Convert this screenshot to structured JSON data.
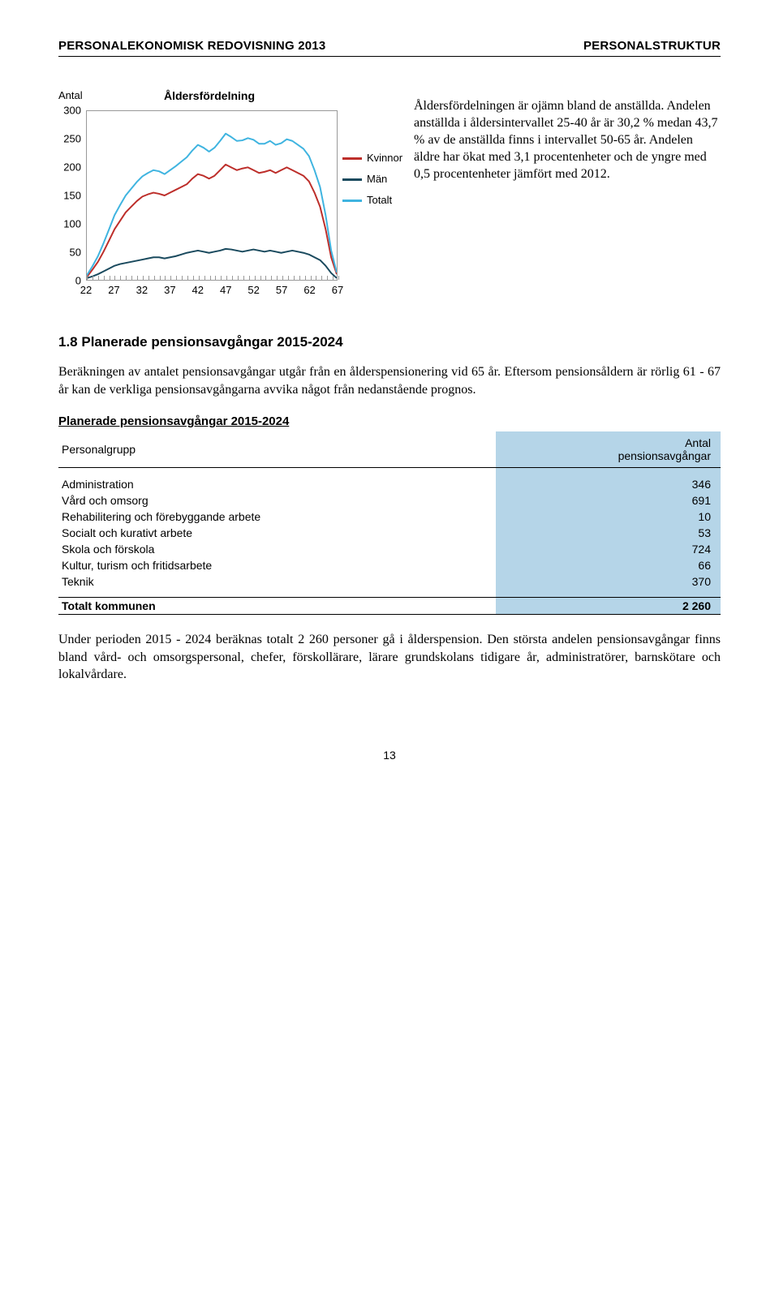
{
  "header": {
    "left": "PERSONALEKONOMISK REDOVISNING 2013",
    "right": "PERSONALSTRUKTUR"
  },
  "chart": {
    "type": "line",
    "y_axis_label": "Antal",
    "title": "Åldersfördelning",
    "xlim": [
      22,
      67
    ],
    "ylim": [
      0,
      300
    ],
    "ytick_step": 50,
    "xtick_step": 5,
    "xticks": [
      22,
      27,
      32,
      37,
      42,
      47,
      52,
      57,
      62,
      67
    ],
    "yticks": [
      0,
      50,
      100,
      150,
      200,
      250,
      300
    ],
    "border_color": "#999999",
    "background_color": "#ffffff",
    "line_width": 2,
    "series": [
      {
        "name": "Kvinnor",
        "color": "#bd2e2a",
        "data": [
          [
            22,
            5
          ],
          [
            23,
            18
          ],
          [
            24,
            32
          ],
          [
            25,
            50
          ],
          [
            26,
            70
          ],
          [
            27,
            90
          ],
          [
            28,
            105
          ],
          [
            29,
            120
          ],
          [
            30,
            130
          ],
          [
            31,
            140
          ],
          [
            32,
            148
          ],
          [
            33,
            152
          ],
          [
            34,
            155
          ],
          [
            35,
            153
          ],
          [
            36,
            150
          ],
          [
            37,
            155
          ],
          [
            38,
            160
          ],
          [
            39,
            165
          ],
          [
            40,
            170
          ],
          [
            41,
            180
          ],
          [
            42,
            188
          ],
          [
            43,
            185
          ],
          [
            44,
            180
          ],
          [
            45,
            185
          ],
          [
            46,
            195
          ],
          [
            47,
            205
          ],
          [
            48,
            200
          ],
          [
            49,
            195
          ],
          [
            50,
            198
          ],
          [
            51,
            200
          ],
          [
            52,
            195
          ],
          [
            53,
            190
          ],
          [
            54,
            192
          ],
          [
            55,
            195
          ],
          [
            56,
            190
          ],
          [
            57,
            195
          ],
          [
            58,
            200
          ],
          [
            59,
            195
          ],
          [
            60,
            190
          ],
          [
            61,
            185
          ],
          [
            62,
            175
          ],
          [
            63,
            155
          ],
          [
            64,
            130
          ],
          [
            65,
            90
          ],
          [
            66,
            40
          ],
          [
            67,
            10
          ]
        ]
      },
      {
        "name": "Män",
        "color": "#1a4a5e",
        "data": [
          [
            22,
            3
          ],
          [
            23,
            6
          ],
          [
            24,
            10
          ],
          [
            25,
            15
          ],
          [
            26,
            20
          ],
          [
            27,
            25
          ],
          [
            28,
            28
          ],
          [
            29,
            30
          ],
          [
            30,
            32
          ],
          [
            31,
            34
          ],
          [
            32,
            36
          ],
          [
            33,
            38
          ],
          [
            34,
            40
          ],
          [
            35,
            40
          ],
          [
            36,
            38
          ],
          [
            37,
            40
          ],
          [
            38,
            42
          ],
          [
            39,
            45
          ],
          [
            40,
            48
          ],
          [
            41,
            50
          ],
          [
            42,
            52
          ],
          [
            43,
            50
          ],
          [
            44,
            48
          ],
          [
            45,
            50
          ],
          [
            46,
            52
          ],
          [
            47,
            55
          ],
          [
            48,
            54
          ],
          [
            49,
            52
          ],
          [
            50,
            50
          ],
          [
            51,
            52
          ],
          [
            52,
            54
          ],
          [
            53,
            52
          ],
          [
            54,
            50
          ],
          [
            55,
            52
          ],
          [
            56,
            50
          ],
          [
            57,
            48
          ],
          [
            58,
            50
          ],
          [
            59,
            52
          ],
          [
            60,
            50
          ],
          [
            61,
            48
          ],
          [
            62,
            45
          ],
          [
            63,
            40
          ],
          [
            64,
            35
          ],
          [
            65,
            25
          ],
          [
            66,
            12
          ],
          [
            67,
            3
          ]
        ]
      },
      {
        "name": "Totalt",
        "color": "#3fb4e0",
        "data": [
          [
            22,
            8
          ],
          [
            23,
            24
          ],
          [
            24,
            42
          ],
          [
            25,
            65
          ],
          [
            26,
            90
          ],
          [
            27,
            115
          ],
          [
            28,
            133
          ],
          [
            29,
            150
          ],
          [
            30,
            162
          ],
          [
            31,
            174
          ],
          [
            32,
            184
          ],
          [
            33,
            190
          ],
          [
            34,
            195
          ],
          [
            35,
            193
          ],
          [
            36,
            188
          ],
          [
            37,
            195
          ],
          [
            38,
            202
          ],
          [
            39,
            210
          ],
          [
            40,
            218
          ],
          [
            41,
            230
          ],
          [
            42,
            240
          ],
          [
            43,
            235
          ],
          [
            44,
            228
          ],
          [
            45,
            235
          ],
          [
            46,
            247
          ],
          [
            47,
            260
          ],
          [
            48,
            254
          ],
          [
            49,
            247
          ],
          [
            50,
            248
          ],
          [
            51,
            252
          ],
          [
            52,
            249
          ],
          [
            53,
            242
          ],
          [
            54,
            242
          ],
          [
            55,
            247
          ],
          [
            56,
            240
          ],
          [
            57,
            243
          ],
          [
            58,
            250
          ],
          [
            59,
            247
          ],
          [
            60,
            240
          ],
          [
            61,
            233
          ],
          [
            62,
            220
          ],
          [
            63,
            195
          ],
          [
            64,
            165
          ],
          [
            65,
            115
          ],
          [
            66,
            52
          ],
          [
            67,
            13
          ]
        ]
      }
    ],
    "legend_labels": {
      "kvinnor": "Kvinnor",
      "man": "Män",
      "totalt": "Totalt"
    }
  },
  "side_paragraph": "Åldersfördelningen är ojämn bland de anställda. Andelen anställda i åldersintervallet 25-40 år är 30,2 % medan 43,7 % av de anställda finns i intervallet 50-65 år. Andelen äldre har ökat med 3,1 procentenheter och de yngre med 0,5 procentenheter jämfört med 2012.",
  "section_heading": "1.8 Planerade pensionsavgångar 2015-2024",
  "para1": "Beräkningen av antalet pensionsavgångar utgår från en ålderspensionering vid 65 år. Eftersom pensionsåldern är rörlig 61 - 67 år kan de verkliga pensionsavgångarna avvika något från nedanstående prognos.",
  "table": {
    "title": "Planerade pensionsavgångar 2015-2024",
    "header_bg": "#b5d5e8",
    "col_label": "Personalgrupp",
    "col_value_l1": "Antal",
    "col_value_l2": "pensionsavgångar",
    "rows": [
      {
        "label": "Administration",
        "value": "346"
      },
      {
        "label": "Vård och omsorg",
        "value": "691"
      },
      {
        "label": "Rehabilitering och förebyggande arbete",
        "value": "10"
      },
      {
        "label": "Socialt och kurativt arbete",
        "value": "53"
      },
      {
        "label": "Skola och förskola",
        "value": "724"
      },
      {
        "label": "Kultur, turism och fritidsarbete",
        "value": "66"
      },
      {
        "label": "Teknik",
        "value": "370"
      }
    ],
    "total_label": "Totalt kommunen",
    "total_value": "2 260"
  },
  "para2": "Under perioden 2015 - 2024 beräknas totalt 2 260 personer gå i ålderspension. Den största andelen pensionsavgångar finns bland vård- och omsorgspersonal, chefer, förskollärare, lärare grundskolans tidigare år, administratörer, barnskötare och lokalvårdare.",
  "page_number": "13"
}
